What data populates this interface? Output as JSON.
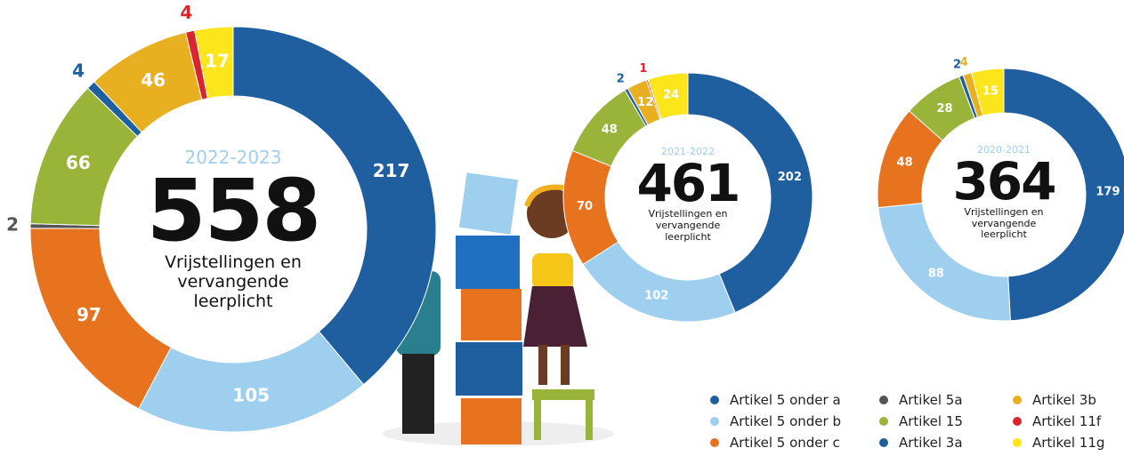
{
  "chart_data": [
    {
      "type": "pie",
      "title": "2022-2023",
      "total": 558,
      "subtitle": "Vrijstellingen en vervangende leerplicht",
      "categories": [
        "Artikel 5 onder a",
        "Artikel 5 onder b",
        "Artikel 5 onder c",
        "Artikel 5a",
        "Artikel 15",
        "Artikel 3a",
        "Artikel 3b",
        "Artikel 11f",
        "Artikel 11g"
      ],
      "colors": [
        "#1f5fa0",
        "#9fcfef",
        "#e8731f",
        "#555555",
        "#9ab43a",
        "#1f5fa0",
        "#e8b020",
        "#d8262e",
        "#fde51c"
      ],
      "values": [
        217,
        105,
        97,
        2,
        66,
        4,
        46,
        4,
        17
      ]
    },
    {
      "type": "pie",
      "title": "2021-2022",
      "total": 461,
      "subtitle": "Vrijstellingen en vervangende leerplicht",
      "categories": [
        "Artikel 5 onder a",
        "Artikel 5 onder b",
        "Artikel 5 onder c",
        "Artikel 5a",
        "Artikel 15",
        "Artikel 3a",
        "Artikel 3b",
        "Artikel 11f",
        "Artikel 11g"
      ],
      "colors": [
        "#1f5fa0",
        "#9fcfef",
        "#e8731f",
        "#555555",
        "#9ab43a",
        "#1f5fa0",
        "#e8b020",
        "#d8262e",
        "#fde51c"
      ],
      "values": [
        202,
        102,
        70,
        null,
        48,
        2,
        12,
        1,
        24
      ]
    },
    {
      "type": "pie",
      "title": "2020-2021",
      "total": 364,
      "subtitle": "Vrijstellingen en vervangende leerplicht",
      "categories": [
        "Artikel 5 onder a",
        "Artikel 5 onder b",
        "Artikel 5 onder c",
        "Artikel 5a",
        "Artikel 15",
        "Artikel 3a",
        "Artikel 3b",
        "Artikel 11f",
        "Artikel 11g"
      ],
      "colors": [
        "#1f5fa0",
        "#9fcfef",
        "#e8731f",
        "#555555",
        "#9ab43a",
        "#1f5fa0",
        "#e8b020",
        "#d8262e",
        "#fde51c"
      ],
      "values": [
        179,
        88,
        48,
        null,
        28,
        2,
        4,
        null,
        15
      ]
    }
  ]
}
